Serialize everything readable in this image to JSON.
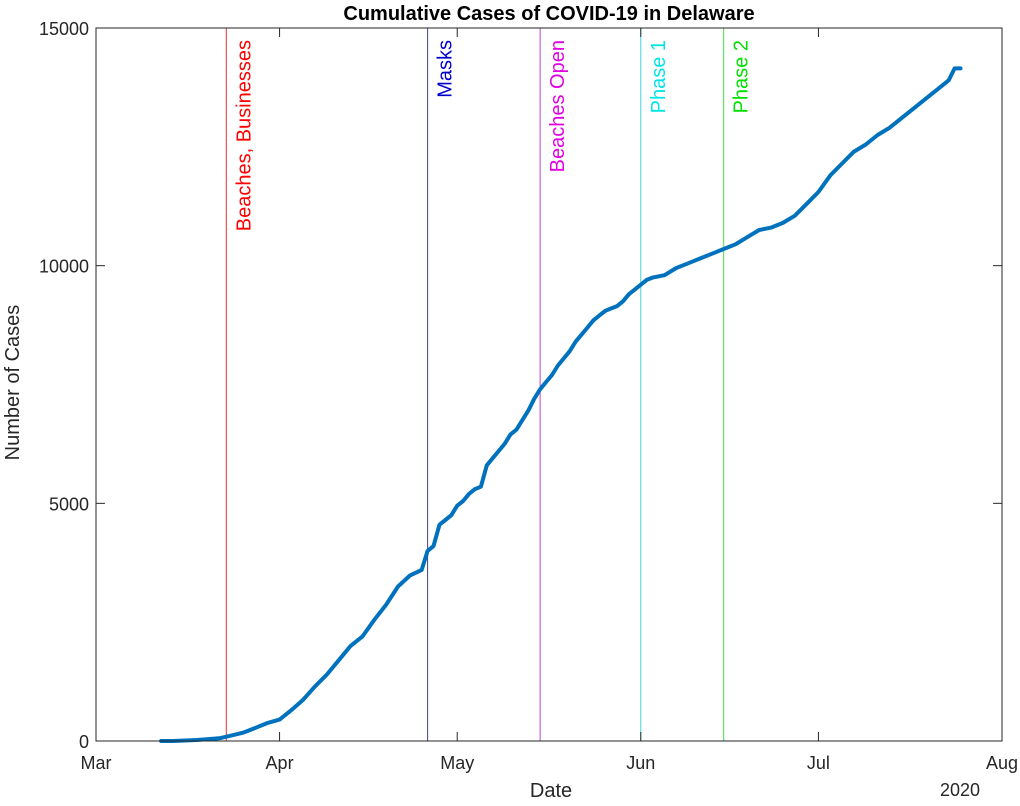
{
  "chart_data": {
    "type": "line",
    "title": "Cumulative Cases of COVID-19 in Delaware",
    "xlabel": "Date",
    "ylabel": "Number of Cases",
    "x_axis_year_label": "2020",
    "xlim": [
      "2020-03-01",
      "2020-08-01"
    ],
    "ylim": [
      0,
      15000
    ],
    "x_ticks": [
      {
        "date": "2020-03-01",
        "label": "Mar"
      },
      {
        "date": "2020-04-01",
        "label": "Apr"
      },
      {
        "date": "2020-05-01",
        "label": "May"
      },
      {
        "date": "2020-06-01",
        "label": "Jun"
      },
      {
        "date": "2020-07-01",
        "label": "Jul"
      },
      {
        "date": "2020-08-01",
        "label": "Aug"
      }
    ],
    "y_ticks": [
      {
        "value": 0,
        "label": "0"
      },
      {
        "value": 5000,
        "label": "5000"
      },
      {
        "value": 10000,
        "label": "10000"
      },
      {
        "value": 15000,
        "label": "15000"
      }
    ],
    "grid": false,
    "line_color": "#0072BD",
    "annotations": [
      {
        "date": "2020-03-23",
        "label": "Beaches, Businesses",
        "color": "#FF0000",
        "line_color": "#E03030"
      },
      {
        "date": "2020-04-26",
        "label": "Masks",
        "color": "#0000CC",
        "line_color": "#404080"
      },
      {
        "date": "2020-05-15",
        "label": "Beaches Open",
        "color": "#E000E0",
        "line_color": "#C040D0"
      },
      {
        "date": "2020-06-01",
        "label": "Phase 1",
        "color": "#00E5E5",
        "line_color": "#40D0E0"
      },
      {
        "date": "2020-06-15",
        "label": "Phase 2",
        "color": "#00E000",
        "line_color": "#40E040"
      }
    ],
    "series": [
      {
        "x": [
          "2020-03-12",
          "2020-03-14",
          "2020-03-16",
          "2020-03-18",
          "2020-03-20",
          "2020-03-22",
          "2020-03-24",
          "2020-03-26",
          "2020-03-28",
          "2020-03-30",
          "2020-04-01",
          "2020-04-03",
          "2020-04-05",
          "2020-04-07",
          "2020-04-09",
          "2020-04-11",
          "2020-04-13",
          "2020-04-15",
          "2020-04-17",
          "2020-04-19",
          "2020-04-21",
          "2020-04-23",
          "2020-04-25",
          "2020-04-26",
          "2020-04-27",
          "2020-04-28",
          "2020-04-29",
          "2020-04-30",
          "2020-05-01",
          "2020-05-02",
          "2020-05-03",
          "2020-05-04",
          "2020-05-05",
          "2020-05-06",
          "2020-05-07",
          "2020-05-08",
          "2020-05-09",
          "2020-05-10",
          "2020-05-11",
          "2020-05-12",
          "2020-05-13",
          "2020-05-14",
          "2020-05-15",
          "2020-05-16",
          "2020-05-17",
          "2020-05-18",
          "2020-05-19",
          "2020-05-20",
          "2020-05-21",
          "2020-05-22",
          "2020-05-23",
          "2020-05-24",
          "2020-05-25",
          "2020-05-26",
          "2020-05-27",
          "2020-05-28",
          "2020-05-29",
          "2020-05-30",
          "2020-05-31",
          "2020-06-01",
          "2020-06-02",
          "2020-06-03",
          "2020-06-05",
          "2020-06-07",
          "2020-06-09",
          "2020-06-11",
          "2020-06-13",
          "2020-06-15",
          "2020-06-17",
          "2020-06-19",
          "2020-06-21",
          "2020-06-23",
          "2020-06-25",
          "2020-06-27",
          "2020-06-29",
          "2020-07-01",
          "2020-07-03",
          "2020-07-05",
          "2020-07-07",
          "2020-07-09",
          "2020-07-11",
          "2020-07-13",
          "2020-07-15",
          "2020-07-17",
          "2020-07-19",
          "2020-07-21",
          "2020-07-23",
          "2020-07-24",
          "2020-07-25"
        ],
        "y": [
          0,
          0,
          10,
          20,
          40,
          60,
          120,
          180,
          280,
          380,
          450,
          650,
          870,
          1150,
          1400,
          1700,
          2000,
          2200,
          2550,
          2870,
          3250,
          3480,
          3600,
          4000,
          4100,
          4550,
          4650,
          4750,
          4950,
          5050,
          5200,
          5300,
          5350,
          5800,
          5950,
          6100,
          6250,
          6450,
          6550,
          6750,
          6950,
          7200,
          7400,
          7550,
          7700,
          7900,
          8050,
          8200,
          8400,
          8550,
          8700,
          8850,
          8950,
          9050,
          9100,
          9150,
          9250,
          9400,
          9500,
          9600,
          9700,
          9750,
          9800,
          9950,
          10050,
          10150,
          10250,
          10350,
          10450,
          10600,
          10750,
          10800,
          10900,
          11050,
          11300,
          11550,
          11900,
          12150,
          12400,
          12550,
          12750,
          12900,
          13100,
          13300,
          13500,
          13700,
          13900,
          14150,
          14150
        ]
      }
    ]
  }
}
